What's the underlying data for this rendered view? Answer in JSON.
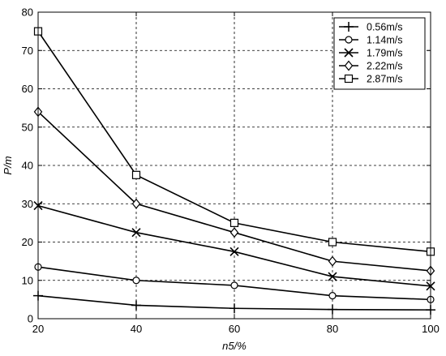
{
  "chart_data": {
    "type": "line",
    "title": "",
    "xlabel": "n5/%",
    "ylabel": "P/m",
    "xlim": [
      20,
      100
    ],
    "ylim": [
      0,
      80
    ],
    "x_ticks": [
      "20",
      "40",
      "60",
      "80",
      "100"
    ],
    "y_ticks": [
      "0",
      "10",
      "20",
      "30",
      "40",
      "50",
      "60",
      "70",
      "80"
    ],
    "grid": "dashed",
    "legend_position": "top-right",
    "x": [
      20,
      40,
      60,
      80,
      100
    ],
    "series": [
      {
        "name": "0.56m/s",
        "marker": "plus",
        "values": [
          6,
          3.5,
          2.7,
          2.4,
          2.3
        ]
      },
      {
        "name": "1.14m/s",
        "marker": "circle",
        "values": [
          13.5,
          10,
          8.7,
          6,
          5
        ]
      },
      {
        "name": "1.79m/s",
        "marker": "x",
        "values": [
          29.5,
          22.5,
          17.5,
          11,
          8.5
        ]
      },
      {
        "name": "2.22m/s",
        "marker": "diamond",
        "values": [
          54,
          30,
          22.5,
          15,
          12.5
        ]
      },
      {
        "name": "2.87m/s",
        "marker": "square",
        "values": [
          75,
          37.5,
          25,
          20,
          17.5
        ]
      }
    ]
  }
}
